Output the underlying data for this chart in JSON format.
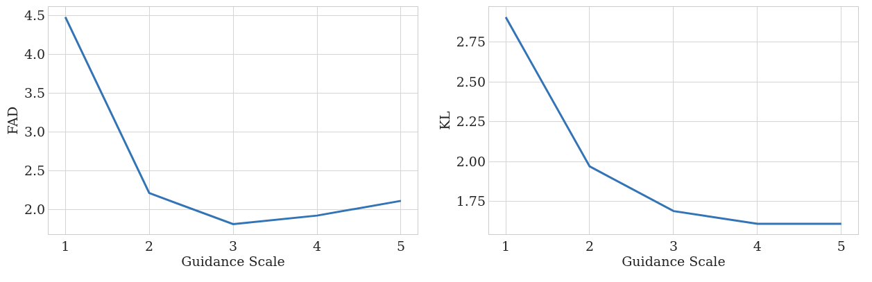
{
  "chart_data": [
    {
      "type": "line",
      "xlabel": "Guidance Scale",
      "ylabel": "FAD",
      "x": [
        1,
        2,
        3,
        4,
        5
      ],
      "series": [
        {
          "color": "#3274b5",
          "values": [
            4.48,
            2.21,
            1.81,
            1.92,
            2.11
          ]
        }
      ],
      "xlim": [
        0.8,
        5.2
      ],
      "xticks": [
        1,
        2,
        3,
        4,
        5
      ],
      "ylim": [
        1.68,
        4.61
      ],
      "yticks": [
        {
          "value": 2.0,
          "label": "2.0"
        },
        2.5,
        {
          "value": 3.0,
          "label": "3.0"
        },
        3.5,
        {
          "value": 4.0,
          "label": "4.0"
        },
        4.5
      ],
      "grid": true,
      "marker": "none",
      "line_style": "solid"
    },
    {
      "type": "line",
      "xlabel": "Guidance Scale",
      "ylabel": "KL",
      "x": [
        1,
        2,
        3,
        4,
        5
      ],
      "series": [
        {
          "color": "#3274b5",
          "values": [
            2.906,
            1.97,
            1.69,
            1.61,
            1.61
          ]
        }
      ],
      "xlim": [
        0.8,
        5.2
      ],
      "xticks": [
        1,
        2,
        3,
        4,
        5
      ],
      "ylim": [
        1.545,
        2.97
      ],
      "yticks": [
        1.75,
        {
          "value": 2.0,
          "label": "2.00"
        },
        2.25,
        {
          "value": 2.5,
          "label": "2.50"
        },
        2.75
      ],
      "grid": true,
      "marker": "none",
      "line_style": "solid"
    }
  ]
}
